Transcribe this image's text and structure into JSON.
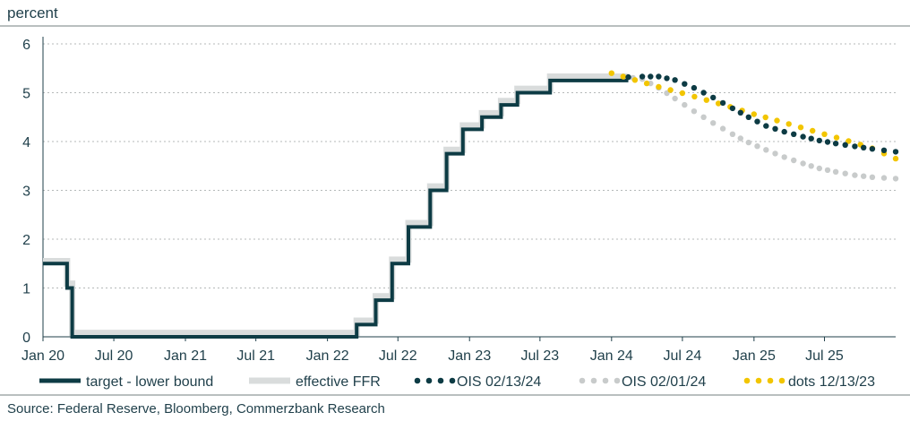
{
  "chart_data": {
    "type": "line",
    "ylabel": "percent",
    "source": "Source: Federal Reserve, Bloomberg, Commerzbank Research",
    "ylim": [
      0,
      6
    ],
    "y_ticks": [
      0,
      1,
      2,
      3,
      4,
      5,
      6
    ],
    "xlim": [
      "2020-01-01",
      "2025-12-31"
    ],
    "x_ticks": [
      {
        "date": "2020-01-01",
        "label": "Jan 20"
      },
      {
        "date": "2020-07-01",
        "label": "Jul 20"
      },
      {
        "date": "2021-01-01",
        "label": "Jan 21"
      },
      {
        "date": "2021-07-01",
        "label": "Jul 21"
      },
      {
        "date": "2022-01-01",
        "label": "Jan 22"
      },
      {
        "date": "2022-07-01",
        "label": "Jul 22"
      },
      {
        "date": "2023-01-01",
        "label": "Jan 23"
      },
      {
        "date": "2023-07-01",
        "label": "Jul 23"
      },
      {
        "date": "2024-01-01",
        "label": "Jan 24"
      },
      {
        "date": "2024-07-01",
        "label": "Jul 24"
      },
      {
        "date": "2025-01-01",
        "label": "Jan 25"
      },
      {
        "date": "2025-07-01",
        "label": "Jul 25"
      }
    ],
    "grid": "horizontal dashed",
    "legend_position": "bottom",
    "series": [
      {
        "name": "target - lower bound",
        "style": "step",
        "color": "#0d3b44",
        "points": [
          [
            "2020-01-01",
            1.5
          ],
          [
            "2020-03-03",
            1.5
          ],
          [
            "2020-03-03",
            1.0
          ],
          [
            "2020-03-16",
            1.0
          ],
          [
            "2020-03-16",
            0.0
          ],
          [
            "2022-03-17",
            0.0
          ],
          [
            "2022-03-17",
            0.25
          ],
          [
            "2022-05-05",
            0.25
          ],
          [
            "2022-05-05",
            0.75
          ],
          [
            "2022-06-16",
            0.75
          ],
          [
            "2022-06-16",
            1.5
          ],
          [
            "2022-07-28",
            1.5
          ],
          [
            "2022-07-28",
            2.25
          ],
          [
            "2022-09-22",
            2.25
          ],
          [
            "2022-09-22",
            3.0
          ],
          [
            "2022-11-03",
            3.0
          ],
          [
            "2022-11-03",
            3.75
          ],
          [
            "2022-12-15",
            3.75
          ],
          [
            "2022-12-15",
            4.25
          ],
          [
            "2023-02-02",
            4.25
          ],
          [
            "2023-02-02",
            4.5
          ],
          [
            "2023-03-23",
            4.5
          ],
          [
            "2023-03-23",
            4.75
          ],
          [
            "2023-05-04",
            4.75
          ],
          [
            "2023-05-04",
            5.0
          ],
          [
            "2023-07-27",
            5.0
          ],
          [
            "2023-07-27",
            5.25
          ],
          [
            "2024-02-13",
            5.25
          ]
        ]
      },
      {
        "name": "effective FFR",
        "style": "step",
        "color": "#d9dcdc",
        "points": [
          [
            "2020-01-01",
            1.55
          ],
          [
            "2020-03-03",
            1.55
          ],
          [
            "2020-03-03",
            1.09
          ],
          [
            "2020-03-16",
            1.09
          ],
          [
            "2020-03-16",
            0.08
          ],
          [
            "2022-03-17",
            0.08
          ],
          [
            "2022-03-17",
            0.33
          ],
          [
            "2022-05-05",
            0.33
          ],
          [
            "2022-05-05",
            0.83
          ],
          [
            "2022-06-16",
            0.83
          ],
          [
            "2022-06-16",
            1.58
          ],
          [
            "2022-07-28",
            1.58
          ],
          [
            "2022-07-28",
            2.33
          ],
          [
            "2022-09-22",
            2.33
          ],
          [
            "2022-09-22",
            3.08
          ],
          [
            "2022-11-03",
            3.08
          ],
          [
            "2022-11-03",
            3.83
          ],
          [
            "2022-12-15",
            3.83
          ],
          [
            "2022-12-15",
            4.33
          ],
          [
            "2023-02-02",
            4.33
          ],
          [
            "2023-02-02",
            4.58
          ],
          [
            "2023-03-23",
            4.58
          ],
          [
            "2023-03-23",
            4.83
          ],
          [
            "2023-05-04",
            4.83
          ],
          [
            "2023-05-04",
            5.08
          ],
          [
            "2023-07-27",
            5.08
          ],
          [
            "2023-07-27",
            5.33
          ],
          [
            "2024-02-13",
            5.33
          ]
        ]
      },
      {
        "name": "OIS 02/13/24",
        "style": "dotted",
        "color": "#0d3b44",
        "points": [
          [
            "2024-02-13",
            5.32
          ],
          [
            "2024-03-20",
            5.33
          ],
          [
            "2024-05-01",
            5.33
          ],
          [
            "2024-06-12",
            5.26
          ],
          [
            "2024-07-31",
            5.1
          ],
          [
            "2024-09-18",
            4.9
          ],
          [
            "2024-11-07",
            4.68
          ],
          [
            "2024-12-18",
            4.5
          ],
          [
            "2025-02-01",
            4.32
          ],
          [
            "2025-03-20",
            4.2
          ],
          [
            "2025-05-07",
            4.1
          ],
          [
            "2025-06-18",
            4.02
          ],
          [
            "2025-07-30",
            3.96
          ],
          [
            "2025-09-17",
            3.9
          ],
          [
            "2025-11-01",
            3.85
          ],
          [
            "2025-12-31",
            3.79
          ]
        ]
      },
      {
        "name": "OIS 02/01/24",
        "style": "dotted",
        "color": "#c8cbcb",
        "points": [
          [
            "2024-02-01",
            5.33
          ],
          [
            "2024-03-20",
            5.28
          ],
          [
            "2024-05-01",
            5.1
          ],
          [
            "2024-06-12",
            4.88
          ],
          [
            "2024-07-31",
            4.62
          ],
          [
            "2024-09-18",
            4.38
          ],
          [
            "2024-11-07",
            4.15
          ],
          [
            "2024-12-18",
            3.98
          ],
          [
            "2025-02-01",
            3.83
          ],
          [
            "2025-03-20",
            3.68
          ],
          [
            "2025-05-07",
            3.55
          ],
          [
            "2025-06-18",
            3.45
          ],
          [
            "2025-07-30",
            3.38
          ],
          [
            "2025-09-17",
            3.31
          ],
          [
            "2025-11-01",
            3.27
          ],
          [
            "2025-12-31",
            3.24
          ]
        ]
      },
      {
        "name": "dots 12/13/23",
        "style": "dotted",
        "color": "#f2c500",
        "points": [
          [
            "2024-01-01",
            5.4
          ],
          [
            "2024-03-01",
            5.26
          ],
          [
            "2024-05-01",
            5.12
          ],
          [
            "2024-07-01",
            4.99
          ],
          [
            "2024-09-01",
            4.85
          ],
          [
            "2024-11-01",
            4.71
          ],
          [
            "2025-01-01",
            4.56
          ],
          [
            "2025-03-01",
            4.43
          ],
          [
            "2025-05-01",
            4.29
          ],
          [
            "2025-07-01",
            4.15
          ],
          [
            "2025-09-01",
            4.01
          ],
          [
            "2025-11-01",
            3.86
          ],
          [
            "2025-12-31",
            3.65
          ]
        ]
      }
    ]
  }
}
